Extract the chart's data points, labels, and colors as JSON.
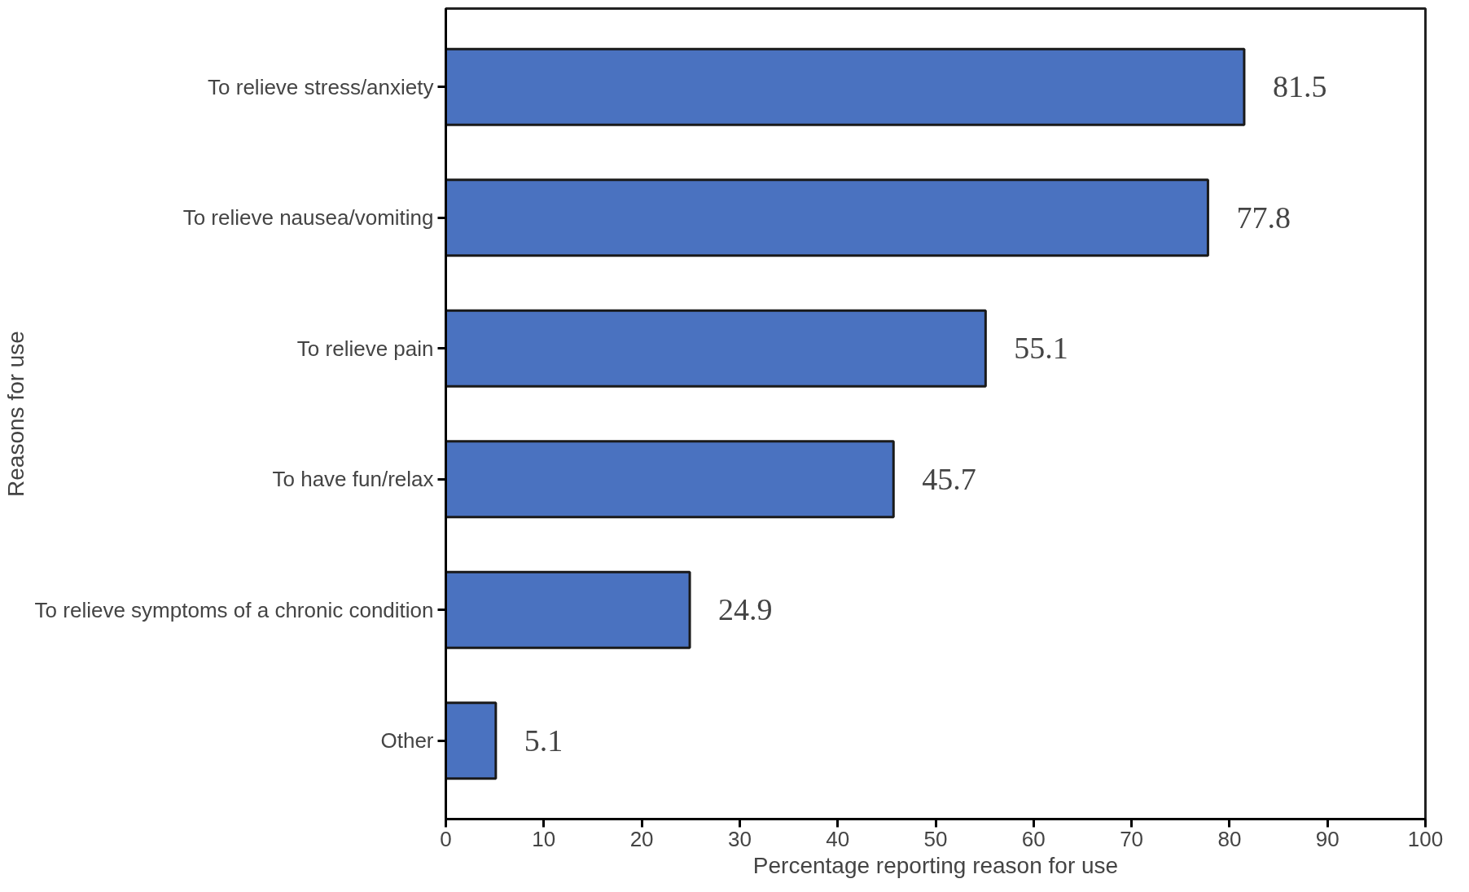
{
  "chart_data": {
    "type": "bar",
    "orientation": "horizontal",
    "xlabel": "Percentage reporting reason for use",
    "ylabel": "Reasons for use",
    "categories": [
      "To relieve stress/anxiety",
      "To relieve nausea/vomiting",
      "To relieve pain",
      "To have fun/relax",
      "To relieve symptoms of a chronic condition",
      "Other"
    ],
    "values": [
      81.5,
      77.8,
      55.1,
      45.7,
      24.9,
      5.1
    ],
    "color": "#4a72c0",
    "xlim": [
      0,
      100
    ],
    "xticks": [
      0,
      10,
      20,
      30,
      40,
      50,
      60,
      70,
      80,
      90,
      100
    ],
    "data_labels": true,
    "grid": false
  }
}
